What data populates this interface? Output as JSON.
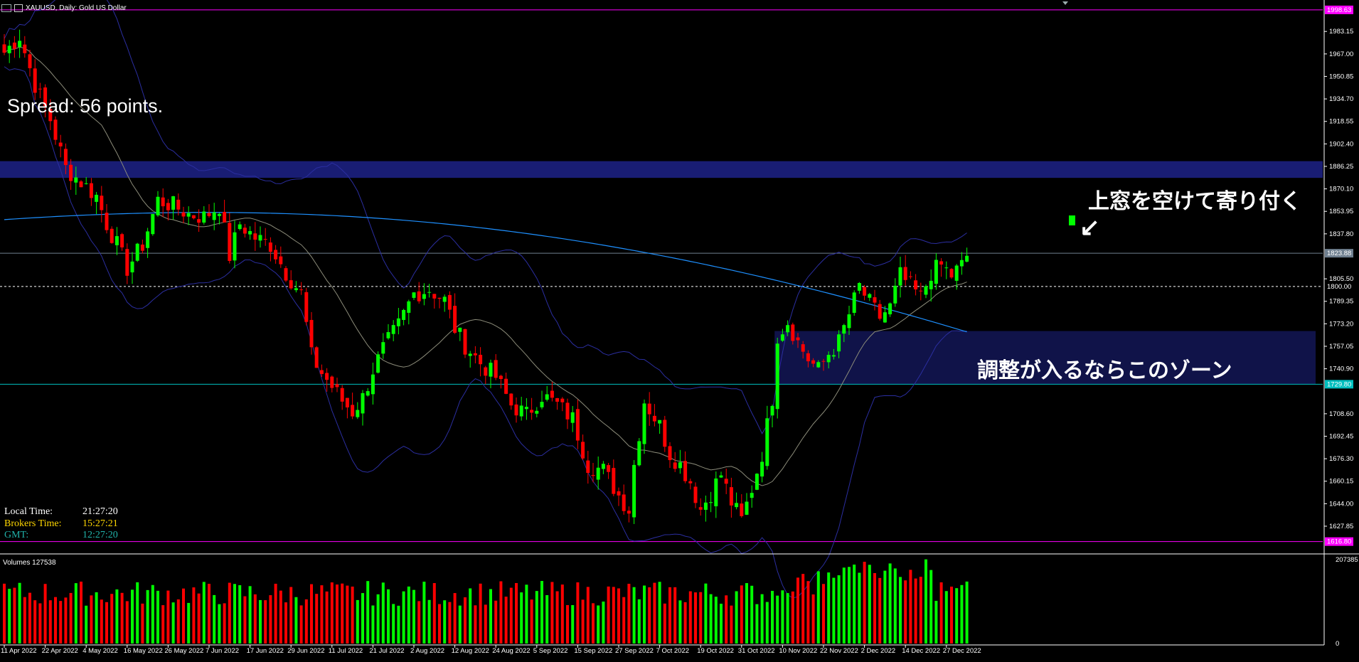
{
  "window": {
    "title": "XAUUSD, Daily:  Gold US Dollar"
  },
  "spread_label": "Spread: 56 points.",
  "annotations": {
    "top_note": "上窓を空けて寄り付く",
    "zone_note": "調整が入るならこのゾーン",
    "arrow": "↙"
  },
  "clock": {
    "local_label": "Local Time:",
    "local_value": "21:27:20",
    "broker_label": "Brokers Time:",
    "broker_value": "15:27:21",
    "gmt_label": "GMT:",
    "gmt_value": "12:27:20"
  },
  "colors": {
    "up": "#00ff00",
    "down": "#ff0000",
    "bb": "#2b2ea0",
    "ma200": "#1e90ff",
    "ma20": "#8c8c7a",
    "zone": "#1a1f7a",
    "hline_cyan": "#00bfbf",
    "hline_magenta": "#ff00ff",
    "clock_local": "#ffffff",
    "clock_broker": "#ffd700",
    "clock_gmt": "#20b2aa"
  },
  "chart_data": {
    "type": "candlestick",
    "symbol": "XAUUSD",
    "timeframe": "Daily",
    "ylim": [
      1611.0,
      1999.6
    ],
    "price_ticks": [
      "1983.15",
      "1967.00",
      "1950.85",
      "1934.70",
      "1918.55",
      "1902.40",
      "1886.25",
      "1870.10",
      "1853.95",
      "1837.80",
      "1805.50",
      "1789.35",
      "1773.20",
      "1757.05",
      "1740.90",
      "1708.60",
      "1692.45",
      "1676.30",
      "1660.15",
      "1644.00",
      "1627.85"
    ],
    "price_tick_values": [
      1983.15,
      1967.0,
      1950.85,
      1934.7,
      1918.55,
      1902.4,
      1886.25,
      1870.1,
      1853.95,
      1837.8,
      1805.5,
      1789.35,
      1773.2,
      1757.05,
      1740.9,
      1708.6,
      1692.45,
      1676.3,
      1660.15,
      1644.0,
      1627.85
    ],
    "price_labels": [
      {
        "value": 1998.63,
        "text": "1998.63",
        "color": "#ff00ff"
      },
      {
        "value": 1823.88,
        "text": "1823.88",
        "color": "#708090"
      },
      {
        "value": 1800.0,
        "text": "1800.00",
        "color": "#ffffff"
      },
      {
        "value": 1729.8,
        "text": "1729.80",
        "color": "#00bfbf"
      },
      {
        "value": 1616.8,
        "text": "1616.80",
        "color": "#ff00ff"
      }
    ],
    "hlines": [
      {
        "value": 1998.63,
        "color": "#ff00ff",
        "style": "solid"
      },
      {
        "value": 1823.88,
        "color": "#708090",
        "style": "solid"
      },
      {
        "value": 1800.0,
        "color": "#ffffff",
        "style": "dashed"
      },
      {
        "value": 1729.8,
        "color": "#00bfbf",
        "style": "solid"
      },
      {
        "value": 1616.8,
        "color": "#ff00ff",
        "style": "solid"
      }
    ],
    "zones": [
      {
        "y1": 1878.0,
        "y2": 1890.0,
        "x_from": 0,
        "x_to": "end"
      },
      {
        "y1": 1729.8,
        "y2": 1768.0,
        "x_from": 151,
        "x_to": "end"
      }
    ],
    "x_labels": [
      {
        "i": 0,
        "text": "11 Apr 2022"
      },
      {
        "i": 8,
        "text": "22 Apr 2022"
      },
      {
        "i": 16,
        "text": "4 May 2022"
      },
      {
        "i": 24,
        "text": "16 May 2022"
      },
      {
        "i": 32,
        "text": "26 May 2022"
      },
      {
        "i": 40,
        "text": "7 Jun 2022"
      },
      {
        "i": 48,
        "text": "17 Jun 2022"
      },
      {
        "i": 56,
        "text": "29 Jun 2022"
      },
      {
        "i": 64,
        "text": "11 Jul 2022"
      },
      {
        "i": 72,
        "text": "21 Jul 2022"
      },
      {
        "i": 80,
        "text": "2 Aug 2022"
      },
      {
        "i": 88,
        "text": "12 Aug 2022"
      },
      {
        "i": 96,
        "text": "24 Aug 2022"
      },
      {
        "i": 104,
        "text": "5 Sep 2022"
      },
      {
        "i": 112,
        "text": "15 Sep 2022"
      },
      {
        "i": 120,
        "text": "27 Sep 2022"
      },
      {
        "i": 128,
        "text": "7 Oct 2022"
      },
      {
        "i": 136,
        "text": "19 Oct 2022"
      },
      {
        "i": 144,
        "text": "31 Oct 2022"
      },
      {
        "i": 152,
        "text": "10 Nov 2022"
      },
      {
        "i": 160,
        "text": "22 Nov 2022"
      },
      {
        "i": 168,
        "text": "2 Dec 2022"
      },
      {
        "i": 176,
        "text": "14 Dec 2022"
      },
      {
        "i": 184,
        "text": "27 Dec 2022"
      }
    ],
    "anchors": [
      [
        0,
        1968
      ],
      [
        3,
        1980
      ],
      [
        6,
        1945
      ],
      [
        9,
        1920
      ],
      [
        12,
        1885
      ],
      [
        15,
        1875
      ],
      [
        18,
        1865
      ],
      [
        20,
        1845
      ],
      [
        22,
        1830
      ],
      [
        24,
        1813
      ],
      [
        27,
        1830
      ],
      [
        30,
        1862
      ],
      [
        33,
        1858
      ],
      [
        36,
        1852
      ],
      [
        39,
        1850
      ],
      [
        42,
        1858
      ],
      [
        44,
        1822
      ],
      [
        46,
        1845
      ],
      [
        49,
        1835
      ],
      [
        52,
        1830
      ],
      [
        55,
        1810
      ],
      [
        58,
        1795
      ],
      [
        60,
        1750
      ],
      [
        62,
        1738
      ],
      [
        64,
        1728
      ],
      [
        66,
        1718
      ],
      [
        68,
        1710
      ],
      [
        70,
        1720
      ],
      [
        72,
        1740
      ],
      [
        74,
        1755
      ],
      [
        77,
        1772
      ],
      [
        80,
        1795
      ],
      [
        83,
        1798
      ],
      [
        86,
        1790
      ],
      [
        88,
        1770
      ],
      [
        90,
        1758
      ],
      [
        93,
        1745
      ],
      [
        96,
        1735
      ],
      [
        99,
        1715
      ],
      [
        102,
        1708
      ],
      [
        105,
        1722
      ],
      [
        108,
        1715
      ],
      [
        111,
        1705
      ],
      [
        114,
        1672
      ],
      [
        117,
        1668
      ],
      [
        120,
        1650
      ],
      [
        122,
        1640
      ],
      [
        123,
        1672
      ],
      [
        125,
        1718
      ],
      [
        128,
        1700
      ],
      [
        130,
        1680
      ],
      [
        132,
        1672
      ],
      [
        134,
        1660
      ],
      [
        136,
        1640
      ],
      [
        138,
        1652
      ],
      [
        140,
        1665
      ],
      [
        142,
        1645
      ],
      [
        144,
        1632
      ],
      [
        146,
        1655
      ],
      [
        148,
        1680
      ],
      [
        150,
        1720
      ],
      [
        151,
        1765
      ],
      [
        153,
        1775
      ],
      [
        155,
        1760
      ],
      [
        157,
        1748
      ],
      [
        159,
        1740
      ],
      [
        161,
        1752
      ],
      [
        163,
        1760
      ],
      [
        165,
        1780
      ],
      [
        167,
        1800
      ],
      [
        169,
        1788
      ],
      [
        171,
        1778
      ],
      [
        173,
        1785
      ],
      [
        175,
        1808
      ],
      [
        177,
        1800
      ],
      [
        179,
        1792
      ],
      [
        181,
        1810
      ],
      [
        183,
        1815
      ],
      [
        185,
        1808
      ],
      [
        187,
        1815
      ],
      [
        188,
        1822
      ]
    ],
    "seed": 7,
    "volumes_title": "Volumes 127538",
    "volume_axis": [
      "207385",
      "0"
    ],
    "volume_max": 207385
  }
}
